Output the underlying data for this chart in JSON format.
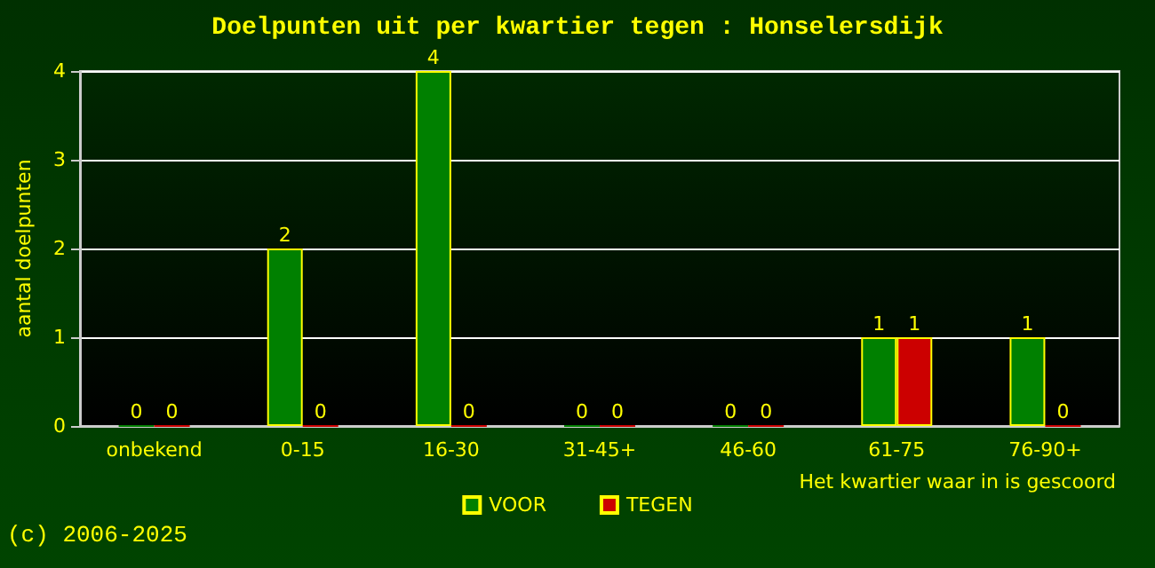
{
  "chart_data": {
    "type": "bar",
    "title": "Doelpunten uit per kwartier tegen : Honselersdijk",
    "xlabel": "Het kwartier waar in is gescoord",
    "ylabel": "aantal doelpunten",
    "categories": [
      "onbekend",
      "0-15",
      "16-30",
      "31-45+",
      "46-60",
      "61-75",
      "76-90+"
    ],
    "series": [
      {
        "name": "VOOR",
        "color": "#008000",
        "values": [
          0,
          2,
          4,
          0,
          0,
          1,
          1
        ]
      },
      {
        "name": "TEGEN",
        "color": "#cc0000",
        "values": [
          0,
          0,
          0,
          0,
          0,
          1,
          0
        ]
      }
    ],
    "ylim": [
      0,
      4
    ],
    "yticks": [
      0,
      1,
      2,
      3,
      4
    ],
    "grid": "y",
    "legend": "bottom",
    "data_labels": true,
    "annotations": [
      "(c) 2006-2025"
    ]
  }
}
